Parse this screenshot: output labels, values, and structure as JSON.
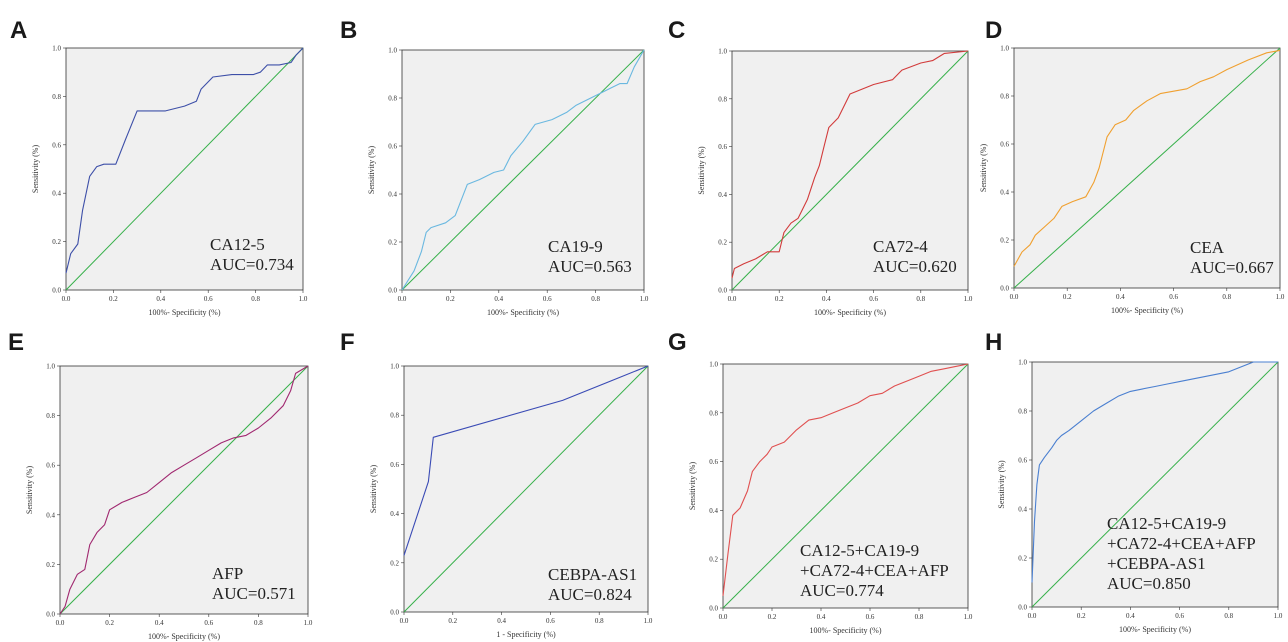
{
  "chart_data": [
    {
      "panel": "A",
      "type": "line",
      "xlabel": "100%- Specificity (%)",
      "ylabel": "Sensitivity (%)",
      "xlim": [
        0,
        1
      ],
      "ylim": [
        0,
        1
      ],
      "xticks": [
        "0.0",
        "0.2",
        "0.4",
        "0.6",
        "0.8",
        "1.0"
      ],
      "yticks": [
        "0.0",
        "0.2",
        "0.4",
        "0.6",
        "0.8",
        "1.0"
      ],
      "annotation": [
        "CA12-5",
        "AUC=0.734"
      ],
      "roc_color": "#3d4fa8",
      "roc": [
        [
          0,
          0.07
        ],
        [
          0.02,
          0.15
        ],
        [
          0.05,
          0.19
        ],
        [
          0.07,
          0.33
        ],
        [
          0.1,
          0.47
        ],
        [
          0.13,
          0.51
        ],
        [
          0.16,
          0.52
        ],
        [
          0.21,
          0.52
        ],
        [
          0.25,
          0.62
        ],
        [
          0.3,
          0.74
        ],
        [
          0.42,
          0.74
        ],
        [
          0.5,
          0.76
        ],
        [
          0.55,
          0.78
        ],
        [
          0.57,
          0.83
        ],
        [
          0.62,
          0.88
        ],
        [
          0.7,
          0.89
        ],
        [
          0.79,
          0.89
        ],
        [
          0.82,
          0.9
        ],
        [
          0.85,
          0.93
        ],
        [
          0.9,
          0.93
        ],
        [
          0.95,
          0.94
        ],
        [
          0.97,
          0.97
        ],
        [
          1,
          1
        ]
      ]
    },
    {
      "panel": "B",
      "type": "line",
      "xlabel": "100%- Specificity (%)",
      "ylabel": "Sensitivity (%)",
      "xlim": [
        0,
        1
      ],
      "ylim": [
        0,
        1
      ],
      "xticks": [
        "0.0",
        "0.2",
        "0.4",
        "0.6",
        "0.8",
        "1.0"
      ],
      "yticks": [
        "0.0",
        "0.2",
        "0.4",
        "0.6",
        "0.8",
        "1.0"
      ],
      "annotation": [
        "CA19-9",
        "AUC=0.563"
      ],
      "roc_color": "#6ab8e0",
      "roc": [
        [
          0,
          0
        ],
        [
          0.05,
          0.08
        ],
        [
          0.08,
          0.16
        ],
        [
          0.1,
          0.24
        ],
        [
          0.12,
          0.26
        ],
        [
          0.18,
          0.28
        ],
        [
          0.22,
          0.31
        ],
        [
          0.27,
          0.44
        ],
        [
          0.32,
          0.46
        ],
        [
          0.38,
          0.49
        ],
        [
          0.42,
          0.5
        ],
        [
          0.45,
          0.56
        ],
        [
          0.5,
          0.62
        ],
        [
          0.55,
          0.69
        ],
        [
          0.62,
          0.71
        ],
        [
          0.68,
          0.74
        ],
        [
          0.72,
          0.77
        ],
        [
          0.8,
          0.81
        ],
        [
          0.86,
          0.84
        ],
        [
          0.9,
          0.86
        ],
        [
          0.93,
          0.86
        ],
        [
          0.96,
          0.93
        ],
        [
          1,
          1
        ]
      ]
    },
    {
      "panel": "C",
      "type": "line",
      "xlabel": "100%- Specificity (%)",
      "ylabel": "Sensitivity (%)",
      "xlim": [
        0,
        1
      ],
      "ylim": [
        0,
        1
      ],
      "xticks": [
        "0.0",
        "0.2",
        "0.4",
        "0.6",
        "0.8",
        "1.0"
      ],
      "yticks": [
        "0.0",
        "0.2",
        "0.4",
        "0.6",
        "0.8",
        "1.0"
      ],
      "annotation": [
        "CA72-4",
        "AUC=0.620"
      ],
      "roc_color": "#d23b3b",
      "roc": [
        [
          0,
          0.05
        ],
        [
          0.01,
          0.09
        ],
        [
          0.05,
          0.11
        ],
        [
          0.1,
          0.13
        ],
        [
          0.15,
          0.16
        ],
        [
          0.2,
          0.16
        ],
        [
          0.22,
          0.24
        ],
        [
          0.25,
          0.28
        ],
        [
          0.28,
          0.3
        ],
        [
          0.3,
          0.34
        ],
        [
          0.32,
          0.38
        ],
        [
          0.35,
          0.47
        ],
        [
          0.37,
          0.52
        ],
        [
          0.39,
          0.6
        ],
        [
          0.41,
          0.68
        ],
        [
          0.45,
          0.72
        ],
        [
          0.47,
          0.76
        ],
        [
          0.5,
          0.82
        ],
        [
          0.55,
          0.84
        ],
        [
          0.6,
          0.86
        ],
        [
          0.68,
          0.88
        ],
        [
          0.72,
          0.92
        ],
        [
          0.8,
          0.95
        ],
        [
          0.85,
          0.96
        ],
        [
          0.9,
          0.99
        ],
        [
          1,
          1
        ]
      ]
    },
    {
      "panel": "D",
      "type": "line",
      "xlabel": "100%- Specificity (%)",
      "ylabel": "Sensitivity (%)",
      "xlim": [
        0,
        1
      ],
      "ylim": [
        0,
        1
      ],
      "xticks": [
        "0.0",
        "0.2",
        "0.4",
        "0.6",
        "0.8",
        "1.0"
      ],
      "yticks": [
        "0.0",
        "0.2",
        "0.4",
        "0.6",
        "0.8",
        "1.0"
      ],
      "annotation": [
        "CEA",
        "AUC=0.667"
      ],
      "roc_color": "#f0a030",
      "roc": [
        [
          0,
          0.09
        ],
        [
          0.03,
          0.15
        ],
        [
          0.06,
          0.18
        ],
        [
          0.08,
          0.22
        ],
        [
          0.12,
          0.26
        ],
        [
          0.15,
          0.29
        ],
        [
          0.18,
          0.34
        ],
        [
          0.22,
          0.36
        ],
        [
          0.27,
          0.38
        ],
        [
          0.3,
          0.44
        ],
        [
          0.32,
          0.5
        ],
        [
          0.35,
          0.63
        ],
        [
          0.38,
          0.68
        ],
        [
          0.42,
          0.7
        ],
        [
          0.45,
          0.74
        ],
        [
          0.5,
          0.78
        ],
        [
          0.55,
          0.81
        ],
        [
          0.6,
          0.82
        ],
        [
          0.65,
          0.83
        ],
        [
          0.7,
          0.86
        ],
        [
          0.75,
          0.88
        ],
        [
          0.8,
          0.91
        ],
        [
          0.88,
          0.95
        ],
        [
          0.95,
          0.98
        ],
        [
          1,
          0.99
        ]
      ]
    },
    {
      "panel": "E",
      "type": "line",
      "xlabel": "100%- Specificity (%)",
      "ylabel": "Sensitivity (%)",
      "xlim": [
        0,
        1
      ],
      "ylim": [
        0,
        1
      ],
      "xticks": [
        "0.0",
        "0.2",
        "0.4",
        "0.6",
        "0.8",
        "1.0"
      ],
      "yticks": [
        "0.0",
        "0.2",
        "0.4",
        "0.6",
        "0.8",
        "1.0"
      ],
      "annotation": [
        "AFP",
        "AUC=0.571"
      ],
      "roc_color": "#a02870",
      "roc": [
        [
          0,
          0
        ],
        [
          0.02,
          0.03
        ],
        [
          0.04,
          0.1
        ],
        [
          0.07,
          0.16
        ],
        [
          0.1,
          0.18
        ],
        [
          0.12,
          0.28
        ],
        [
          0.15,
          0.33
        ],
        [
          0.18,
          0.36
        ],
        [
          0.2,
          0.42
        ],
        [
          0.25,
          0.45
        ],
        [
          0.3,
          0.47
        ],
        [
          0.35,
          0.49
        ],
        [
          0.4,
          0.53
        ],
        [
          0.45,
          0.57
        ],
        [
          0.5,
          0.6
        ],
        [
          0.55,
          0.63
        ],
        [
          0.6,
          0.66
        ],
        [
          0.65,
          0.69
        ],
        [
          0.7,
          0.71
        ],
        [
          0.75,
          0.72
        ],
        [
          0.8,
          0.75
        ],
        [
          0.85,
          0.79
        ],
        [
          0.9,
          0.84
        ],
        [
          0.93,
          0.9
        ],
        [
          0.95,
          0.97
        ],
        [
          1,
          1
        ]
      ]
    },
    {
      "panel": "F",
      "type": "line",
      "xlabel": "1 - Specificity (%)",
      "ylabel": "Sensitivity (%)",
      "xlim": [
        0,
        1
      ],
      "ylim": [
        0,
        1
      ],
      "xticks": [
        "0.0",
        "0.2",
        "0.4",
        "0.6",
        "0.8",
        "1.0"
      ],
      "yticks": [
        "0.0",
        "0.2",
        "0.4",
        "0.6",
        "0.8",
        "1.0"
      ],
      "annotation": [
        "CEBPA-AS1",
        "AUC=0.824"
      ],
      "roc_color": "#3a4bb5",
      "roc": [
        [
          0,
          0.23
        ],
        [
          0.1,
          0.53
        ],
        [
          0.12,
          0.71
        ],
        [
          0.65,
          0.86
        ],
        [
          1,
          1
        ]
      ]
    },
    {
      "panel": "G",
      "type": "line",
      "xlabel": "100%- Specificity (%)",
      "ylabel": "Sensitivity (%)",
      "xlim": [
        0,
        1
      ],
      "ylim": [
        0,
        1
      ],
      "xticks": [
        "0.0",
        "0.2",
        "0.4",
        "0.6",
        "0.8",
        "1.0"
      ],
      "yticks": [
        "0.0",
        "0.2",
        "0.4",
        "0.6",
        "0.8",
        "1.0"
      ],
      "annotation": [
        "CA12-5+CA19-9",
        "+CA72-4+CEA+AFP",
        "AUC=0.774"
      ],
      "roc_color": "#e05050",
      "roc": [
        [
          0,
          0.05
        ],
        [
          0.02,
          0.22
        ],
        [
          0.04,
          0.38
        ],
        [
          0.07,
          0.41
        ],
        [
          0.1,
          0.48
        ],
        [
          0.12,
          0.56
        ],
        [
          0.15,
          0.6
        ],
        [
          0.18,
          0.63
        ],
        [
          0.2,
          0.66
        ],
        [
          0.25,
          0.68
        ],
        [
          0.3,
          0.73
        ],
        [
          0.35,
          0.77
        ],
        [
          0.4,
          0.78
        ],
        [
          0.45,
          0.8
        ],
        [
          0.5,
          0.82
        ],
        [
          0.55,
          0.84
        ],
        [
          0.6,
          0.87
        ],
        [
          0.65,
          0.88
        ],
        [
          0.7,
          0.91
        ],
        [
          0.75,
          0.93
        ],
        [
          0.8,
          0.95
        ],
        [
          0.85,
          0.97
        ],
        [
          0.9,
          0.98
        ],
        [
          0.95,
          0.99
        ],
        [
          1,
          1
        ]
      ]
    },
    {
      "panel": "H",
      "type": "line",
      "xlabel": "100%- Specificity (%)",
      "ylabel": "Sensitivity (%)",
      "xlim": [
        0,
        1
      ],
      "ylim": [
        0,
        1
      ],
      "xticks": [
        "0.0",
        "0.2",
        "0.4",
        "0.6",
        "0.8",
        "1.0"
      ],
      "yticks": [
        "0.0",
        "0.2",
        "0.4",
        "0.6",
        "0.8",
        "1.0"
      ],
      "annotation": [
        "CA12-5+CA19-9",
        "+CA72-4+CEA+AFP",
        "+CEBPA-AS1",
        "AUC=0.850"
      ],
      "roc_color": "#4a7fd0",
      "roc": [
        [
          0,
          0.1
        ],
        [
          0.01,
          0.35
        ],
        [
          0.02,
          0.5
        ],
        [
          0.03,
          0.58
        ],
        [
          0.05,
          0.61
        ],
        [
          0.08,
          0.65
        ],
        [
          0.1,
          0.68
        ],
        [
          0.12,
          0.7
        ],
        [
          0.15,
          0.72
        ],
        [
          0.2,
          0.76
        ],
        [
          0.25,
          0.8
        ],
        [
          0.3,
          0.83
        ],
        [
          0.35,
          0.86
        ],
        [
          0.4,
          0.88
        ],
        [
          0.45,
          0.89
        ],
        [
          0.5,
          0.9
        ],
        [
          0.55,
          0.91
        ],
        [
          0.6,
          0.92
        ],
        [
          0.7,
          0.94
        ],
        [
          0.8,
          0.96
        ],
        [
          0.85,
          0.98
        ],
        [
          0.9,
          1
        ],
        [
          1,
          1
        ]
      ]
    }
  ],
  "style": {
    "plot_background": "#f0f0f0",
    "reference_line_color": "#36b04a",
    "axis_color": "#333333"
  }
}
